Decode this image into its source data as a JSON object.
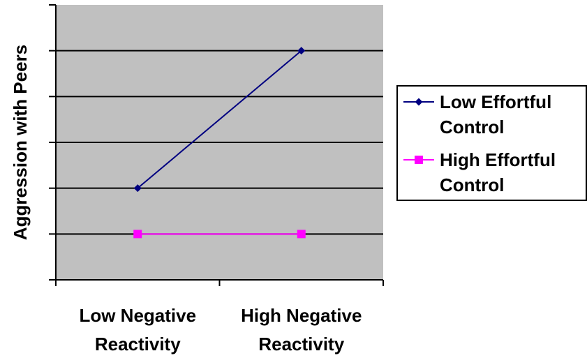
{
  "chart_data": {
    "type": "line",
    "title": "",
    "xlabel": "",
    "ylabel": "Aggression with Peers",
    "categories": [
      "Low Negative Reactivity",
      "High Negative Reactivity"
    ],
    "category_lines": [
      [
        "Low Negative",
        "Reactivity"
      ],
      [
        "High Negative",
        "Reactivity"
      ]
    ],
    "ylim": [
      0,
      6
    ],
    "y_tick_count": 6,
    "y_tick_labels_shown": false,
    "grid": true,
    "legend_position": "right",
    "plot_background": "#c0c0c0",
    "series": [
      {
        "name": "Low Effortful Control",
        "name_lines": [
          "Low Effortful",
          "Control"
        ],
        "values": [
          2,
          5
        ],
        "color": "#000080",
        "marker": "diamond"
      },
      {
        "name": "High Effortful Control",
        "name_lines": [
          "High Effortful",
          "Control"
        ],
        "values": [
          1,
          1
        ],
        "color": "#ff00ff",
        "marker": "square"
      }
    ]
  }
}
